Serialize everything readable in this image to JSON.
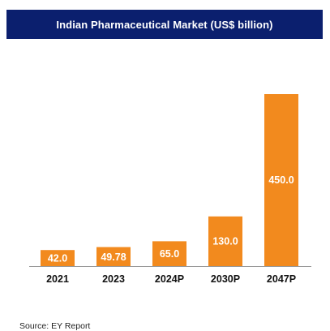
{
  "chart_data": {
    "type": "bar",
    "title": "Indian Pharmaceutical Market (US$ billion)",
    "categories": [
      "2021",
      "2023",
      "2024P",
      "2030P",
      "2047P"
    ],
    "values": [
      42.0,
      49.78,
      65.0,
      130.0,
      450.0
    ],
    "value_labels": [
      "42.0",
      "49.78",
      "65.0",
      "130.0",
      "450.0"
    ],
    "xlabel": "",
    "ylabel": "",
    "ylim": [
      0,
      450
    ],
    "grid": false,
    "legend": "none",
    "bar_color": "#f28a1e",
    "label_position": "inside-bar"
  },
  "title_bar_color": "#0b1f6e",
  "source": "Source: EY Report"
}
